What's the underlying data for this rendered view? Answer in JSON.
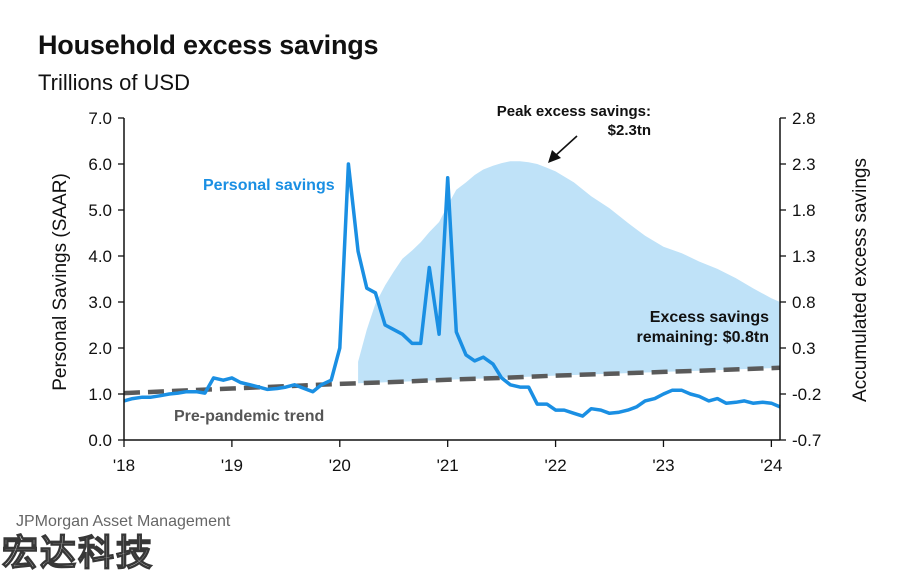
{
  "title": "Household excess savings",
  "subtitle": "Trillions of USD",
  "source": "JPMorgan Asset Management",
  "watermark": "宏达科技",
  "colors": {
    "personal_savings": "#1a8fe3",
    "excess_area": "#bfe2f8",
    "trend": "#5a5a5a",
    "personal_label": "#1a8fe3",
    "trend_label": "#555555"
  },
  "chart_data": {
    "type": "line",
    "ylabel": "Personal  Savings  (SAAR)",
    "y2label": "Accumulated  excess savings",
    "ylim": [
      0,
      7
    ],
    "y2lim": [
      -0.7,
      2.8
    ],
    "xlim": [
      2018.0,
      2024.08
    ],
    "y_ticks": [
      "0.0",
      "1.0",
      "2.0",
      "3.0",
      "4.0",
      "5.0",
      "6.0",
      "7.0"
    ],
    "y2_ticks": [
      "-0.7",
      "-0.2",
      "0.3",
      "0.8",
      "1.3",
      "1.8",
      "2.3",
      "2.8"
    ],
    "x_ticks": [
      {
        "x": 2018,
        "label": "'18"
      },
      {
        "x": 2019,
        "label": "'19"
      },
      {
        "x": 2020,
        "label": "'20"
      },
      {
        "x": 2021,
        "label": "'21"
      },
      {
        "x": 2022,
        "label": "'22"
      },
      {
        "x": 2023,
        "label": "'23"
      },
      {
        "x": 2024,
        "label": "'24"
      }
    ],
    "grid": false,
    "series": [
      {
        "name": "Personal savings",
        "axis": "left",
        "x": [
          2018.0,
          2018.08,
          2018.17,
          2018.25,
          2018.33,
          2018.42,
          2018.5,
          2018.58,
          2018.67,
          2018.75,
          2018.83,
          2018.92,
          2019.0,
          2019.08,
          2019.17,
          2019.25,
          2019.33,
          2019.42,
          2019.5,
          2019.58,
          2019.67,
          2019.75,
          2019.83,
          2019.92,
          2020.0,
          2020.08,
          2020.17,
          2020.25,
          2020.33,
          2020.42,
          2020.5,
          2020.58,
          2020.67,
          2020.75,
          2020.83,
          2020.92,
          2021.0,
          2021.08,
          2021.17,
          2021.25,
          2021.33,
          2021.42,
          2021.5,
          2021.58,
          2021.67,
          2021.75,
          2021.83,
          2021.92,
          2022.0,
          2022.08,
          2022.17,
          2022.25,
          2022.33,
          2022.42,
          2022.5,
          2022.58,
          2022.67,
          2022.75,
          2022.83,
          2022.92,
          2023.0,
          2023.08,
          2023.17,
          2023.25,
          2023.33,
          2023.42,
          2023.5,
          2023.58,
          2023.67,
          2023.75,
          2023.83,
          2023.92,
          2024.0,
          2024.08
        ],
        "values": [
          0.85,
          0.9,
          0.93,
          0.93,
          0.96,
          1.0,
          1.02,
          1.05,
          1.05,
          1.02,
          1.35,
          1.3,
          1.35,
          1.25,
          1.2,
          1.15,
          1.1,
          1.12,
          1.15,
          1.2,
          1.12,
          1.05,
          1.2,
          1.3,
          2.0,
          6.0,
          4.1,
          3.3,
          3.2,
          2.5,
          2.4,
          2.3,
          2.1,
          2.1,
          3.75,
          2.3,
          5.7,
          2.35,
          1.85,
          1.72,
          1.8,
          1.65,
          1.35,
          1.2,
          1.15,
          1.15,
          0.78,
          0.78,
          0.65,
          0.65,
          0.58,
          0.52,
          0.68,
          0.65,
          0.58,
          0.6,
          0.65,
          0.72,
          0.85,
          0.9,
          1.0,
          1.08,
          1.08,
          1.0,
          0.95,
          0.85,
          0.9,
          0.8,
          0.82,
          0.85,
          0.8,
          0.82,
          0.8,
          0.72
        ]
      },
      {
        "name": "Pre-pandemic trend",
        "axis": "left",
        "style": "dashed",
        "x": [
          2018.0,
          2018.5,
          2019.0,
          2019.5,
          2020.0,
          2020.5,
          2021.0,
          2021.5,
          2022.0,
          2022.5,
          2023.0,
          2023.5,
          2024.08
        ],
        "values": [
          1.02,
          1.07,
          1.12,
          1.17,
          1.22,
          1.26,
          1.31,
          1.35,
          1.4,
          1.44,
          1.48,
          1.52,
          1.57
        ]
      },
      {
        "name": "Accumulated excess savings",
        "axis": "right",
        "type": "area",
        "x": [
          2020.17,
          2020.25,
          2020.33,
          2020.42,
          2020.5,
          2020.58,
          2020.67,
          2020.75,
          2020.83,
          2020.92,
          2021.0,
          2021.08,
          2021.17,
          2021.25,
          2021.33,
          2021.42,
          2021.5,
          2021.58,
          2021.67,
          2021.75,
          2021.83,
          2021.92,
          2022.0,
          2022.17,
          2022.33,
          2022.5,
          2022.67,
          2022.83,
          2023.0,
          2023.17,
          2023.33,
          2023.5,
          2023.67,
          2023.83,
          2024.0,
          2024.08
        ],
        "values": [
          0.15,
          0.5,
          0.78,
          0.98,
          1.13,
          1.27,
          1.36,
          1.45,
          1.56,
          1.67,
          1.85,
          2.02,
          2.1,
          2.18,
          2.24,
          2.28,
          2.31,
          2.33,
          2.33,
          2.32,
          2.3,
          2.26,
          2.22,
          2.1,
          1.95,
          1.82,
          1.66,
          1.52,
          1.4,
          1.33,
          1.24,
          1.16,
          1.06,
          0.95,
          0.84,
          0.8
        ]
      }
    ],
    "annotations": {
      "personal_savings": "Personal savings",
      "pre_pandemic": "Pre-pandemic trend",
      "peak_line1": "Peak excess savings:",
      "peak_line2": "$2.3tn",
      "remaining_line1": "Excess savings",
      "remaining_line2": "remaining: $0.8tn"
    }
  }
}
